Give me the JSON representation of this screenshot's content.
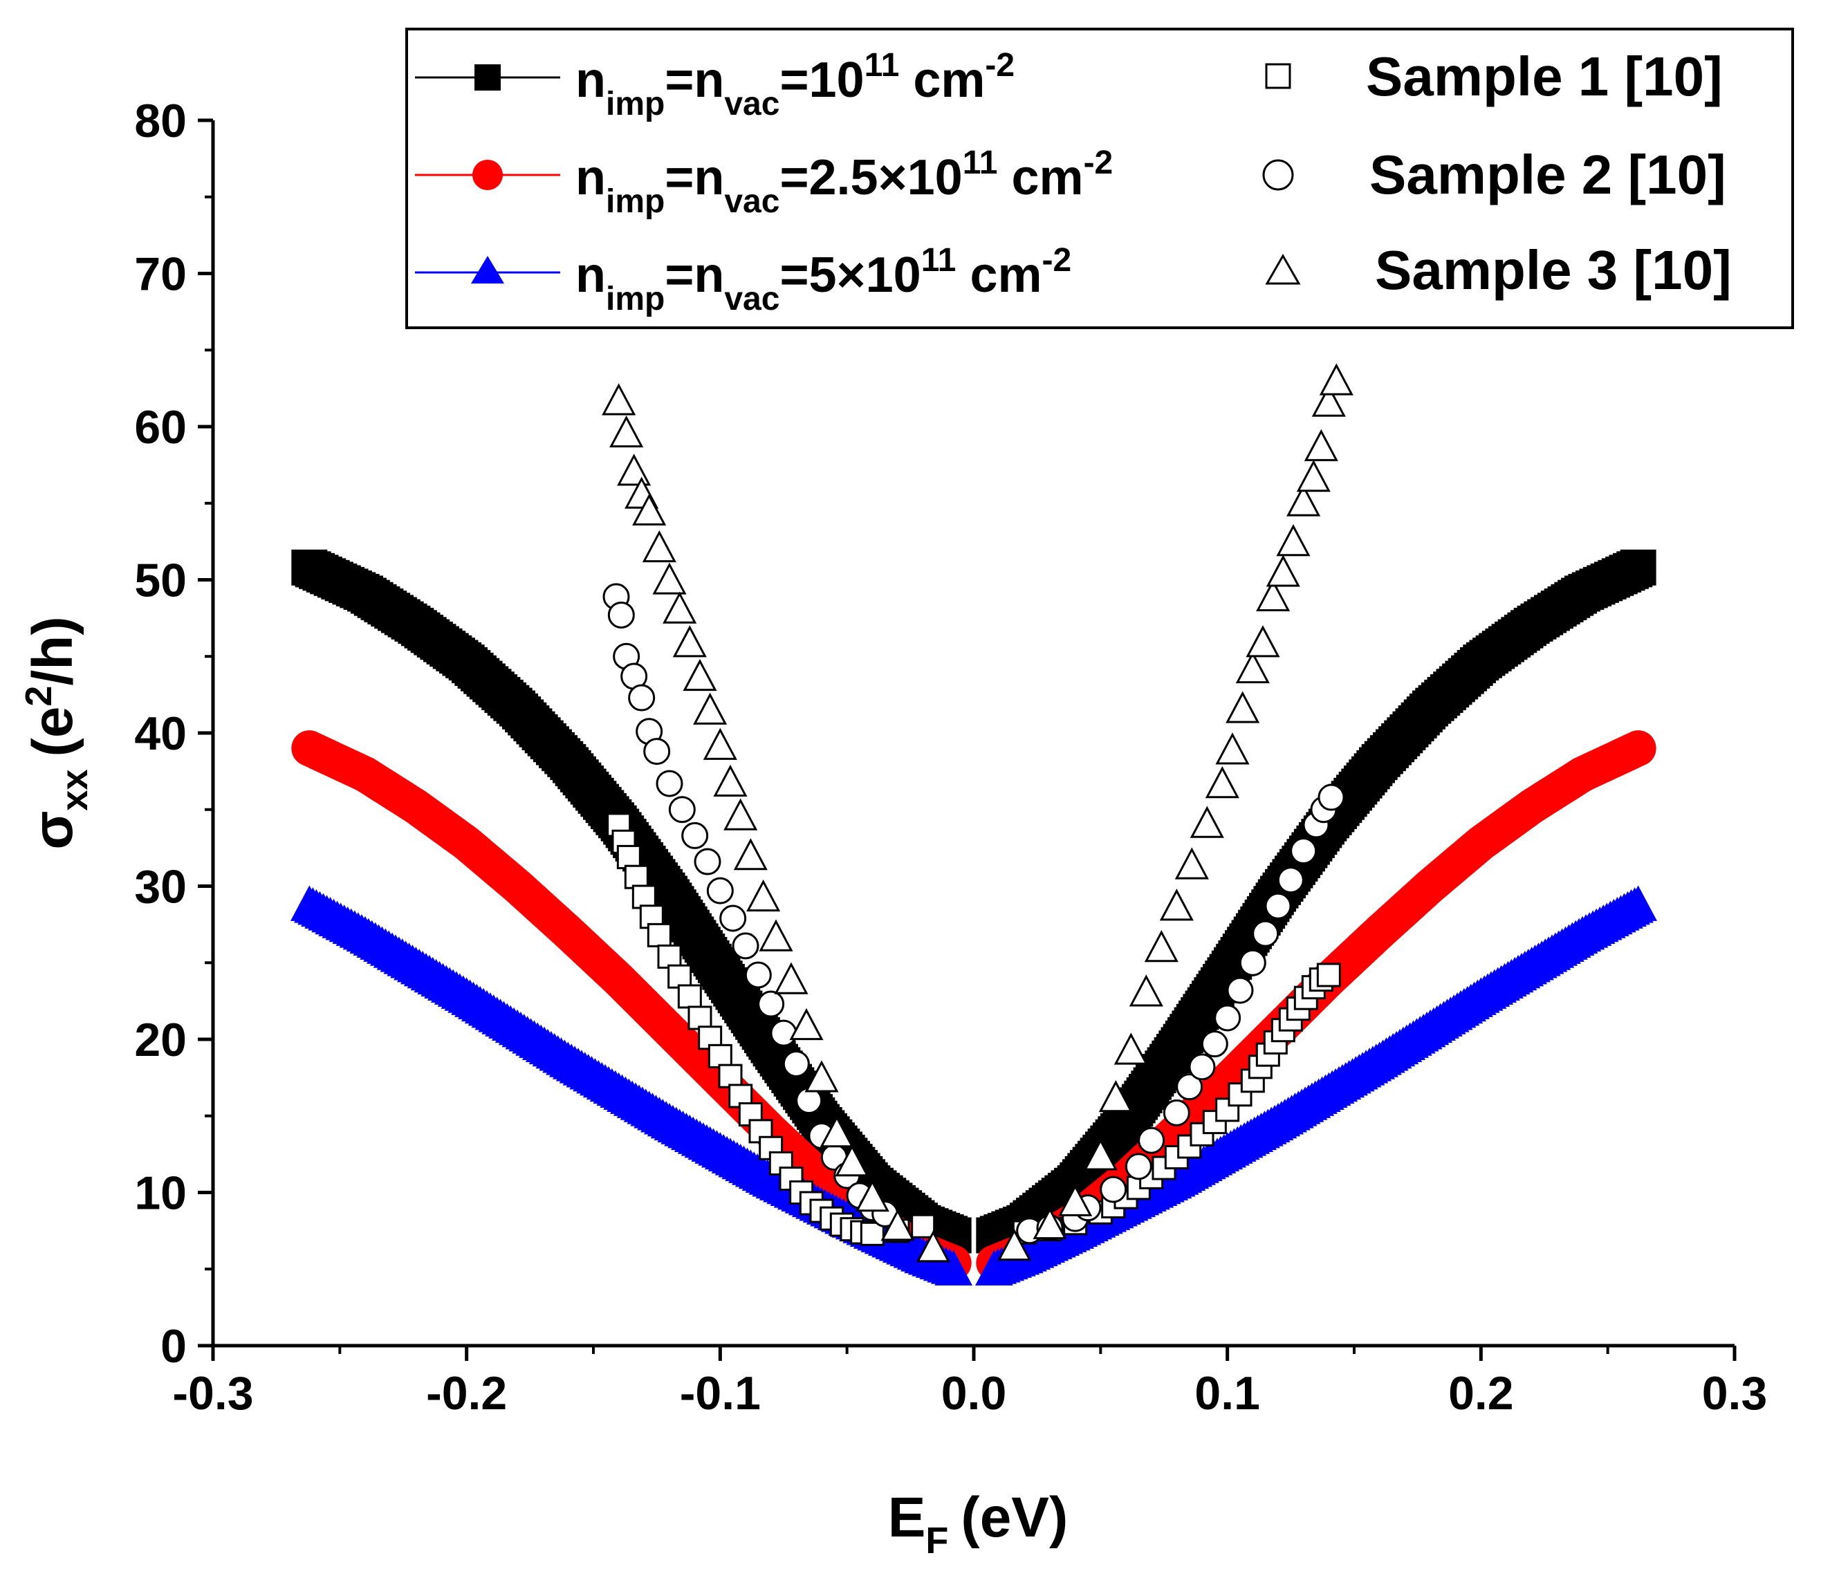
{
  "chart_data": {
    "type": "scatter",
    "title": "",
    "xlabel": "E",
    "xlabel_sub": "F",
    "xlabel_unit": "(eV)",
    "ylabel": "σ",
    "ylabel_sub": "xx",
    "ylabel_unit_pre": "(e",
    "ylabel_unit_sup": "2",
    "ylabel_unit_post": "/h)",
    "xlim": [
      -0.3,
      0.3
    ],
    "ylim": [
      0,
      80
    ],
    "x_ticks": [
      "-0.3",
      "-0.2",
      "-0.1",
      "0.0",
      "0.1",
      "0.2",
      "0.3"
    ],
    "x_tick_values": [
      -0.3,
      -0.2,
      -0.1,
      0.0,
      0.1,
      0.2,
      0.3
    ],
    "y_ticks": [
      "0",
      "10",
      "20",
      "30",
      "40",
      "50",
      "60",
      "70",
      "80"
    ],
    "y_tick_values": [
      0,
      10,
      20,
      30,
      40,
      50,
      60,
      70,
      80
    ],
    "legend_position": "top-right",
    "series": [
      {
        "name": "theory-1e11",
        "label_parts": {
          "n": "n",
          "imp": "imp",
          "eq1": "=n",
          "vac": "vac",
          "eq2": "=10",
          "exp": "11",
          "unit": " cm",
          "unit_exp": "-2"
        },
        "color": "#000000",
        "marker": "square-filled",
        "style": "line",
        "x": [
          -0.262,
          -0.24,
          -0.22,
          -0.2,
          -0.18,
          -0.16,
          -0.14,
          -0.12,
          -0.1,
          -0.08,
          -0.06,
          -0.04,
          -0.02,
          -0.008,
          0.008,
          0.02,
          0.04,
          0.06,
          0.08,
          0.1,
          0.12,
          0.14,
          0.16,
          0.18,
          0.2,
          0.22,
          0.24,
          0.262
        ],
        "values": [
          50.8,
          49.1,
          47.0,
          44.6,
          41.6,
          38.1,
          34.1,
          29.5,
          24.4,
          19.4,
          14.6,
          10.6,
          8.0,
          7.2,
          7.2,
          8.0,
          10.6,
          14.6,
          19.4,
          24.4,
          29.5,
          34.1,
          38.1,
          41.6,
          44.6,
          47.0,
          49.1,
          50.8
        ]
      },
      {
        "name": "theory-2.5e11",
        "label_parts": {
          "n": "n",
          "imp": "imp",
          "eq1": "=n",
          "vac": "vac",
          "eq2": "=2.5×10",
          "exp": "11",
          "unit": " cm",
          "unit_exp": "-2"
        },
        "color": "#ff0000",
        "marker": "circle-filled",
        "style": "line",
        "x": [
          -0.262,
          -0.24,
          -0.22,
          -0.2,
          -0.18,
          -0.16,
          -0.14,
          -0.12,
          -0.1,
          -0.08,
          -0.06,
          -0.04,
          -0.02,
          -0.008,
          0.008,
          0.02,
          0.04,
          0.06,
          0.08,
          0.1,
          0.12,
          0.14,
          0.16,
          0.18,
          0.2,
          0.22,
          0.24,
          0.262
        ],
        "values": [
          39.0,
          37.3,
          35.2,
          32.8,
          30.0,
          27.0,
          23.9,
          20.6,
          17.3,
          14.0,
          10.9,
          8.2,
          6.2,
          5.4,
          5.4,
          6.2,
          8.2,
          10.9,
          14.0,
          17.3,
          20.6,
          23.9,
          27.0,
          30.0,
          32.8,
          35.2,
          37.3,
          39.0
        ]
      },
      {
        "name": "theory-5e11",
        "label_parts": {
          "n": "n",
          "imp": "imp",
          "eq1": "=n",
          "vac": "vac",
          "eq2": "=5×10",
          "exp": "11",
          "unit": " cm",
          "unit_exp": "-2"
        },
        "color": "#0000ff",
        "marker": "triangle-filled",
        "style": "line",
        "x": [
          -0.262,
          -0.24,
          -0.22,
          -0.2,
          -0.18,
          -0.16,
          -0.14,
          -0.12,
          -0.1,
          -0.08,
          -0.06,
          -0.04,
          -0.02,
          -0.008,
          0.008,
          0.02,
          0.04,
          0.06,
          0.08,
          0.1,
          0.12,
          0.14,
          0.16,
          0.18,
          0.2,
          0.22,
          0.24,
          0.262
        ],
        "values": [
          28.7,
          26.7,
          24.7,
          22.7,
          20.6,
          18.5,
          16.5,
          14.5,
          12.6,
          10.7,
          9.0,
          7.3,
          5.7,
          4.9,
          4.9,
          5.7,
          7.3,
          9.0,
          10.7,
          12.6,
          14.5,
          16.5,
          18.5,
          20.6,
          22.7,
          24.7,
          26.7,
          28.7
        ]
      },
      {
        "name": "Sample 1 [10]",
        "color": "#000000",
        "marker": "square-open",
        "style": "markers",
        "x": [
          -0.14,
          -0.138,
          -0.136,
          -0.133,
          -0.13,
          -0.127,
          -0.124,
          -0.12,
          -0.116,
          -0.112,
          -0.108,
          -0.104,
          -0.1,
          -0.096,
          -0.092,
          -0.088,
          -0.084,
          -0.08,
          -0.076,
          -0.072,
          -0.068,
          -0.064,
          -0.06,
          -0.056,
          -0.052,
          -0.048,
          -0.044,
          -0.04,
          -0.03,
          -0.02,
          0.02,
          0.03,
          0.04,
          0.05,
          0.055,
          0.06,
          0.065,
          0.07,
          0.075,
          0.08,
          0.085,
          0.09,
          0.095,
          0.1,
          0.105,
          0.11,
          0.113,
          0.116,
          0.119,
          0.122,
          0.125,
          0.128,
          0.131,
          0.134,
          0.137,
          0.14
        ],
        "values": [
          34.0,
          32.9,
          31.9,
          30.6,
          29.3,
          28.0,
          26.8,
          25.4,
          24.1,
          22.8,
          21.4,
          20.1,
          18.9,
          17.6,
          16.3,
          15.1,
          14.0,
          12.9,
          11.9,
          10.9,
          10.0,
          9.3,
          8.8,
          8.3,
          7.9,
          7.6,
          7.4,
          7.3,
          7.5,
          7.8,
          7.4,
          7.6,
          8.0,
          8.7,
          9.1,
          9.7,
          10.3,
          11.0,
          11.6,
          12.3,
          13.0,
          13.8,
          14.6,
          15.4,
          16.4,
          17.3,
          18.2,
          19.0,
          19.8,
          20.6,
          21.3,
          22.0,
          22.7,
          23.4,
          23.9,
          24.2
        ]
      },
      {
        "name": "Sample 2 [10]",
        "color": "#000000",
        "marker": "circle-open",
        "style": "markers",
        "x": [
          -0.141,
          -0.139,
          -0.137,
          -0.134,
          -0.131,
          -0.128,
          -0.125,
          -0.12,
          -0.115,
          -0.11,
          -0.105,
          -0.1,
          -0.095,
          -0.09,
          -0.085,
          -0.08,
          -0.075,
          -0.07,
          -0.065,
          -0.06,
          -0.055,
          -0.05,
          -0.045,
          -0.04,
          -0.035,
          0.022,
          0.03,
          0.04,
          0.045,
          0.055,
          0.065,
          0.07,
          0.08,
          0.085,
          0.09,
          0.095,
          0.1,
          0.105,
          0.11,
          0.115,
          0.12,
          0.125,
          0.13,
          0.135,
          0.138,
          0.141
        ],
        "values": [
          48.9,
          47.7,
          45.0,
          43.7,
          42.3,
          40.1,
          38.8,
          36.7,
          35.0,
          33.3,
          31.6,
          29.7,
          27.9,
          26.1,
          24.2,
          22.3,
          20.4,
          18.4,
          16.0,
          13.7,
          12.3,
          11.1,
          9.8,
          9.0,
          8.6,
          7.5,
          7.7,
          8.3,
          9.0,
          10.2,
          11.7,
          13.4,
          15.2,
          16.9,
          18.2,
          19.7,
          21.4,
          23.2,
          25.0,
          26.9,
          28.7,
          30.4,
          32.3,
          34.0,
          35.0,
          35.8
        ]
      },
      {
        "name": "Sample 3 [10]",
        "color": "#000000",
        "marker": "triangle-open",
        "style": "markers",
        "x": [
          -0.14,
          -0.137,
          -0.134,
          -0.131,
          -0.128,
          -0.124,
          -0.12,
          -0.116,
          -0.112,
          -0.108,
          -0.104,
          -0.1,
          -0.096,
          -0.092,
          -0.088,
          -0.083,
          -0.078,
          -0.072,
          -0.066,
          -0.06,
          -0.054,
          -0.048,
          -0.04,
          -0.03,
          -0.016,
          0.016,
          0.03,
          0.04,
          0.05,
          0.056,
          0.062,
          0.068,
          0.074,
          0.08,
          0.086,
          0.092,
          0.098,
          0.102,
          0.106,
          0.11,
          0.114,
          0.118,
          0.122,
          0.126,
          0.13,
          0.134,
          0.137,
          0.14,
          0.143
        ],
        "values": [
          61.6,
          59.5,
          57.0,
          55.5,
          54.4,
          52.0,
          49.9,
          48.0,
          45.8,
          43.6,
          41.4,
          39.1,
          36.7,
          34.5,
          31.9,
          29.2,
          26.6,
          23.8,
          20.8,
          17.4,
          13.8,
          11.9,
          9.6,
          7.7,
          6.3,
          6.4,
          7.8,
          9.3,
          12.3,
          16.1,
          19.2,
          23.0,
          25.9,
          28.6,
          31.3,
          34.0,
          36.6,
          38.8,
          41.5,
          44.1,
          45.8,
          48.8,
          50.4,
          52.4,
          55.0,
          56.6,
          58.6,
          61.5,
          62.9
        ]
      }
    ]
  }
}
